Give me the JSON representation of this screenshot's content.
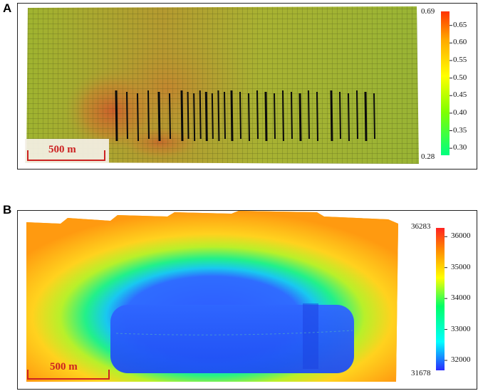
{
  "panel_a": {
    "letter": "A",
    "colorbar": {
      "max_label": "0.69",
      "min_label": "0.28",
      "range": [
        0.28,
        0.69
      ],
      "ticks": [
        "0.65",
        "0.60",
        "0.55",
        "0.50",
        "0.45",
        "0.40",
        "0.35",
        "0.30"
      ],
      "colors": [
        "#00ff80",
        "#7fff00",
        "#ffff00",
        "#ffaa00",
        "#ff3300"
      ]
    },
    "scale_bar": {
      "label": "500 m"
    }
  },
  "panel_b": {
    "letter": "B",
    "colorbar": {
      "max_label": "36283",
      "min_label": "31678",
      "range": [
        31678,
        36283
      ],
      "ticks": [
        "36000",
        "35000",
        "34000",
        "33000",
        "32000"
      ],
      "colors": [
        "#2a2aff",
        "#00ffff",
        "#00ff66",
        "#ffff00",
        "#ff8800",
        "#ff2222"
      ]
    },
    "scale_bar": {
      "label": "500 m"
    }
  }
}
